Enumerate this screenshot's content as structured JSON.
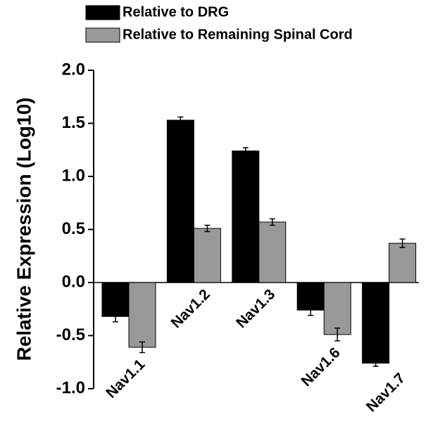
{
  "chart_data": {
    "type": "bar",
    "y_label": "Relative Expression (Log10)",
    "categories": [
      "Nav1.1",
      "Nav1.2",
      "Nav1.3",
      "Nav1.6",
      "Nav1.7"
    ],
    "series": [
      {
        "name": "Relative to DRG",
        "color": "#000000",
        "values": [
          -0.32,
          1.53,
          1.24,
          -0.26,
          -0.76
        ],
        "errors": [
          0.05,
          0.03,
          0.03,
          0.05,
          0.03
        ]
      },
      {
        "name": "Relative to Remaining Spinal Cord",
        "color": "#999999",
        "values": [
          -0.61,
          0.51,
          0.57,
          -0.49,
          0.37
        ],
        "errors": [
          0.05,
          0.03,
          0.03,
          0.06,
          0.04
        ]
      }
    ],
    "ylim": [
      -1.0,
      2.0
    ],
    "yticks": [
      {
        "value": -1.0,
        "label": "-1.0"
      },
      {
        "value": -0.5,
        "label": "-0.5"
      },
      {
        "value": 0.0,
        "label": "0.0"
      },
      {
        "value": 0.5,
        "label": "0.5"
      },
      {
        "value": 1.0,
        "label": "1.0"
      },
      {
        "value": 1.5,
        "label": "1.5"
      },
      {
        "value": 2.0,
        "label": "2.0"
      }
    ],
    "legend": "top"
  }
}
